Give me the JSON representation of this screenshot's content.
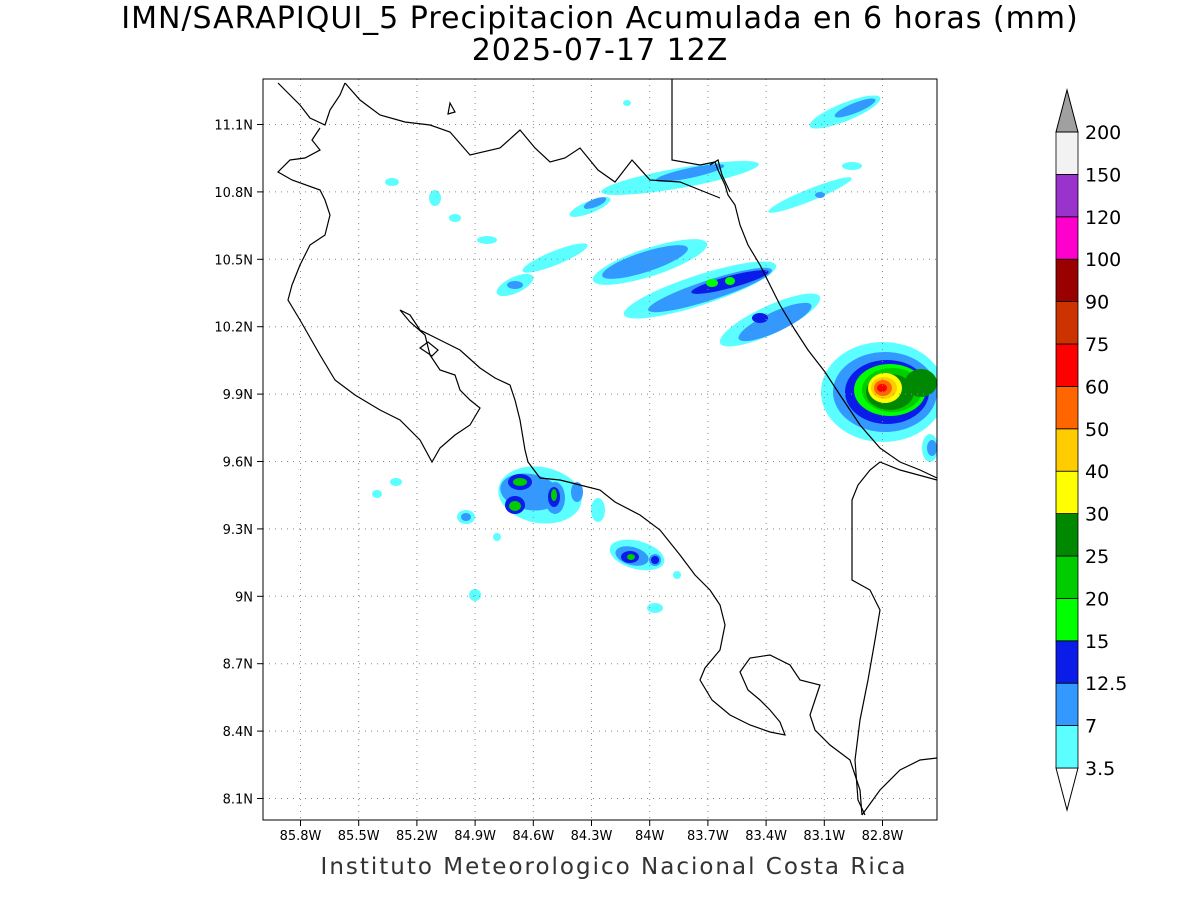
{
  "title": {
    "line1": "IMN/SARAPIQUI_5 Precipitacion Acumulada en 6 horas (mm)",
    "line2": "2025-07-17 12Z"
  },
  "credit": "Instituto Meteorologico Nacional Costa Rica",
  "axes": {
    "x_ticks": [
      "85.8W",
      "85.5W",
      "85.2W",
      "84.9W",
      "84.6W",
      "84.3W",
      "84W",
      "83.7W",
      "83.4W",
      "83.1W",
      "82.8W"
    ],
    "y_ticks": [
      "11.1N",
      "10.8N",
      "10.5N",
      "10.2N",
      "9.9N",
      "9.6N",
      "9.3N",
      "9N",
      "8.7N",
      "8.4N",
      "8.1N"
    ],
    "x_range_deg": [
      -85.99,
      -82.67
    ],
    "y_range_deg": [
      8.02,
      11.31
    ],
    "grid": true
  },
  "colorbar": {
    "unit": "mm",
    "levels": [
      "3.5",
      "7",
      "12.5",
      "15",
      "20",
      "25",
      "30",
      "40",
      "50",
      "60",
      "75",
      "90",
      "100",
      "120",
      "150",
      "200"
    ],
    "colors": [
      "#5cffff",
      "#3399ff",
      "#0b1be8",
      "#00ff00",
      "#00cc00",
      "#008800",
      "#ffff00",
      "#ffcc00",
      "#ff6600",
      "#ff0000",
      "#cc3300",
      "#990000",
      "#ff00cc",
      "#9933cc",
      "#f2f2f2",
      "#a0a0a0"
    ]
  },
  "precip_cells": [
    {
      "name": "north-band-a",
      "level": "3.5-7"
    },
    {
      "name": "north-band-b",
      "level": "7-12.5"
    },
    {
      "name": "central-band",
      "level": "12.5-20"
    },
    {
      "name": "caribbean-core",
      "level": "60-75"
    },
    {
      "name": "pacific-cells",
      "level": "15-20"
    }
  ]
}
